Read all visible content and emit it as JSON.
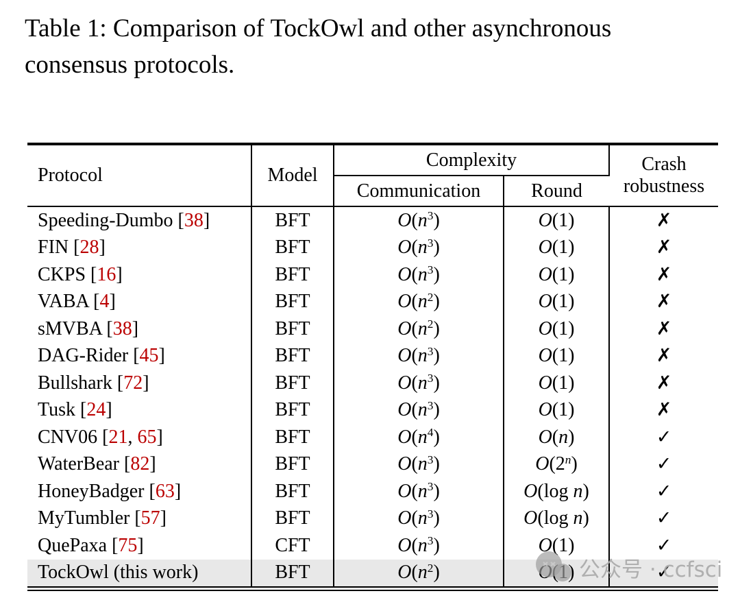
{
  "title": "Table 1: Comparison of TockOwl and other asynchronous consensus protocols.",
  "table": {
    "headers": {
      "protocol": "Protocol",
      "model": "Model",
      "complexity": "Complexity",
      "communication": "Communication",
      "round": "Round",
      "crash_line1": "Crash",
      "crash_line2": "robustness"
    },
    "rows": [
      {
        "name": "Speeding-Dumbo",
        "cites": [
          "38"
        ],
        "model": "BFT",
        "communication": "O(n^3)",
        "round": "O(1)",
        "crash": "no",
        "highlight": false
      },
      {
        "name": "FIN",
        "cites": [
          "28"
        ],
        "model": "BFT",
        "communication": "O(n^3)",
        "round": "O(1)",
        "crash": "no",
        "highlight": false
      },
      {
        "name": "CKPS",
        "cites": [
          "16"
        ],
        "model": "BFT",
        "communication": "O(n^3)",
        "round": "O(1)",
        "crash": "no",
        "highlight": false
      },
      {
        "name": "VABA",
        "cites": [
          "4"
        ],
        "model": "BFT",
        "communication": "O(n^2)",
        "round": "O(1)",
        "crash": "no",
        "highlight": false
      },
      {
        "name": "sMVBA",
        "cites": [
          "38"
        ],
        "model": "BFT",
        "communication": "O(n^2)",
        "round": "O(1)",
        "crash": "no",
        "highlight": false
      },
      {
        "name": "DAG-Rider",
        "cites": [
          "45"
        ],
        "model": "BFT",
        "communication": "O(n^3)",
        "round": "O(1)",
        "crash": "no",
        "highlight": false
      },
      {
        "name": "Bullshark",
        "cites": [
          "72"
        ],
        "model": "BFT",
        "communication": "O(n^3)",
        "round": "O(1)",
        "crash": "no",
        "highlight": false
      },
      {
        "name": "Tusk",
        "cites": [
          "24"
        ],
        "model": "BFT",
        "communication": "O(n^3)",
        "round": "O(1)",
        "crash": "no",
        "highlight": false
      },
      {
        "name": "CNV06",
        "cites": [
          "21",
          "65"
        ],
        "model": "BFT",
        "communication": "O(n^4)",
        "round": "O(n)",
        "crash": "yes",
        "highlight": false
      },
      {
        "name": "WaterBear",
        "cites": [
          "82"
        ],
        "model": "BFT",
        "communication": "O(n^3)",
        "round": "O(2^n)",
        "crash": "yes",
        "highlight": false
      },
      {
        "name": "HoneyBadger",
        "cites": [
          "63"
        ],
        "model": "BFT",
        "communication": "O(n^3)",
        "round": "O(log n)",
        "crash": "yes",
        "highlight": false
      },
      {
        "name": "MyTumbler",
        "cites": [
          "57"
        ],
        "model": "BFT",
        "communication": "O(n^3)",
        "round": "O(log n)",
        "crash": "yes",
        "highlight": false
      },
      {
        "name": "QuePaxa",
        "cites": [
          "75"
        ],
        "model": "CFT",
        "communication": "O(n^3)",
        "round": "O(1)",
        "crash": "yes",
        "highlight": false
      },
      {
        "name": "TockOwl (this work)",
        "cites": [],
        "model": "BFT",
        "communication": "O(n^2)",
        "round": "O(1)",
        "crash": "yes",
        "highlight": true
      }
    ]
  },
  "marks": {
    "yes": "✓",
    "no": "✗"
  },
  "watermark": {
    "icon": "wechat-official-account-icon",
    "text": "公众号 · ccfsci"
  },
  "colors": {
    "citation_red": "#bb0000",
    "highlight_row": "#e8e8e8",
    "watermark_gray": "#a9a9a9",
    "rule_black": "#000000"
  }
}
